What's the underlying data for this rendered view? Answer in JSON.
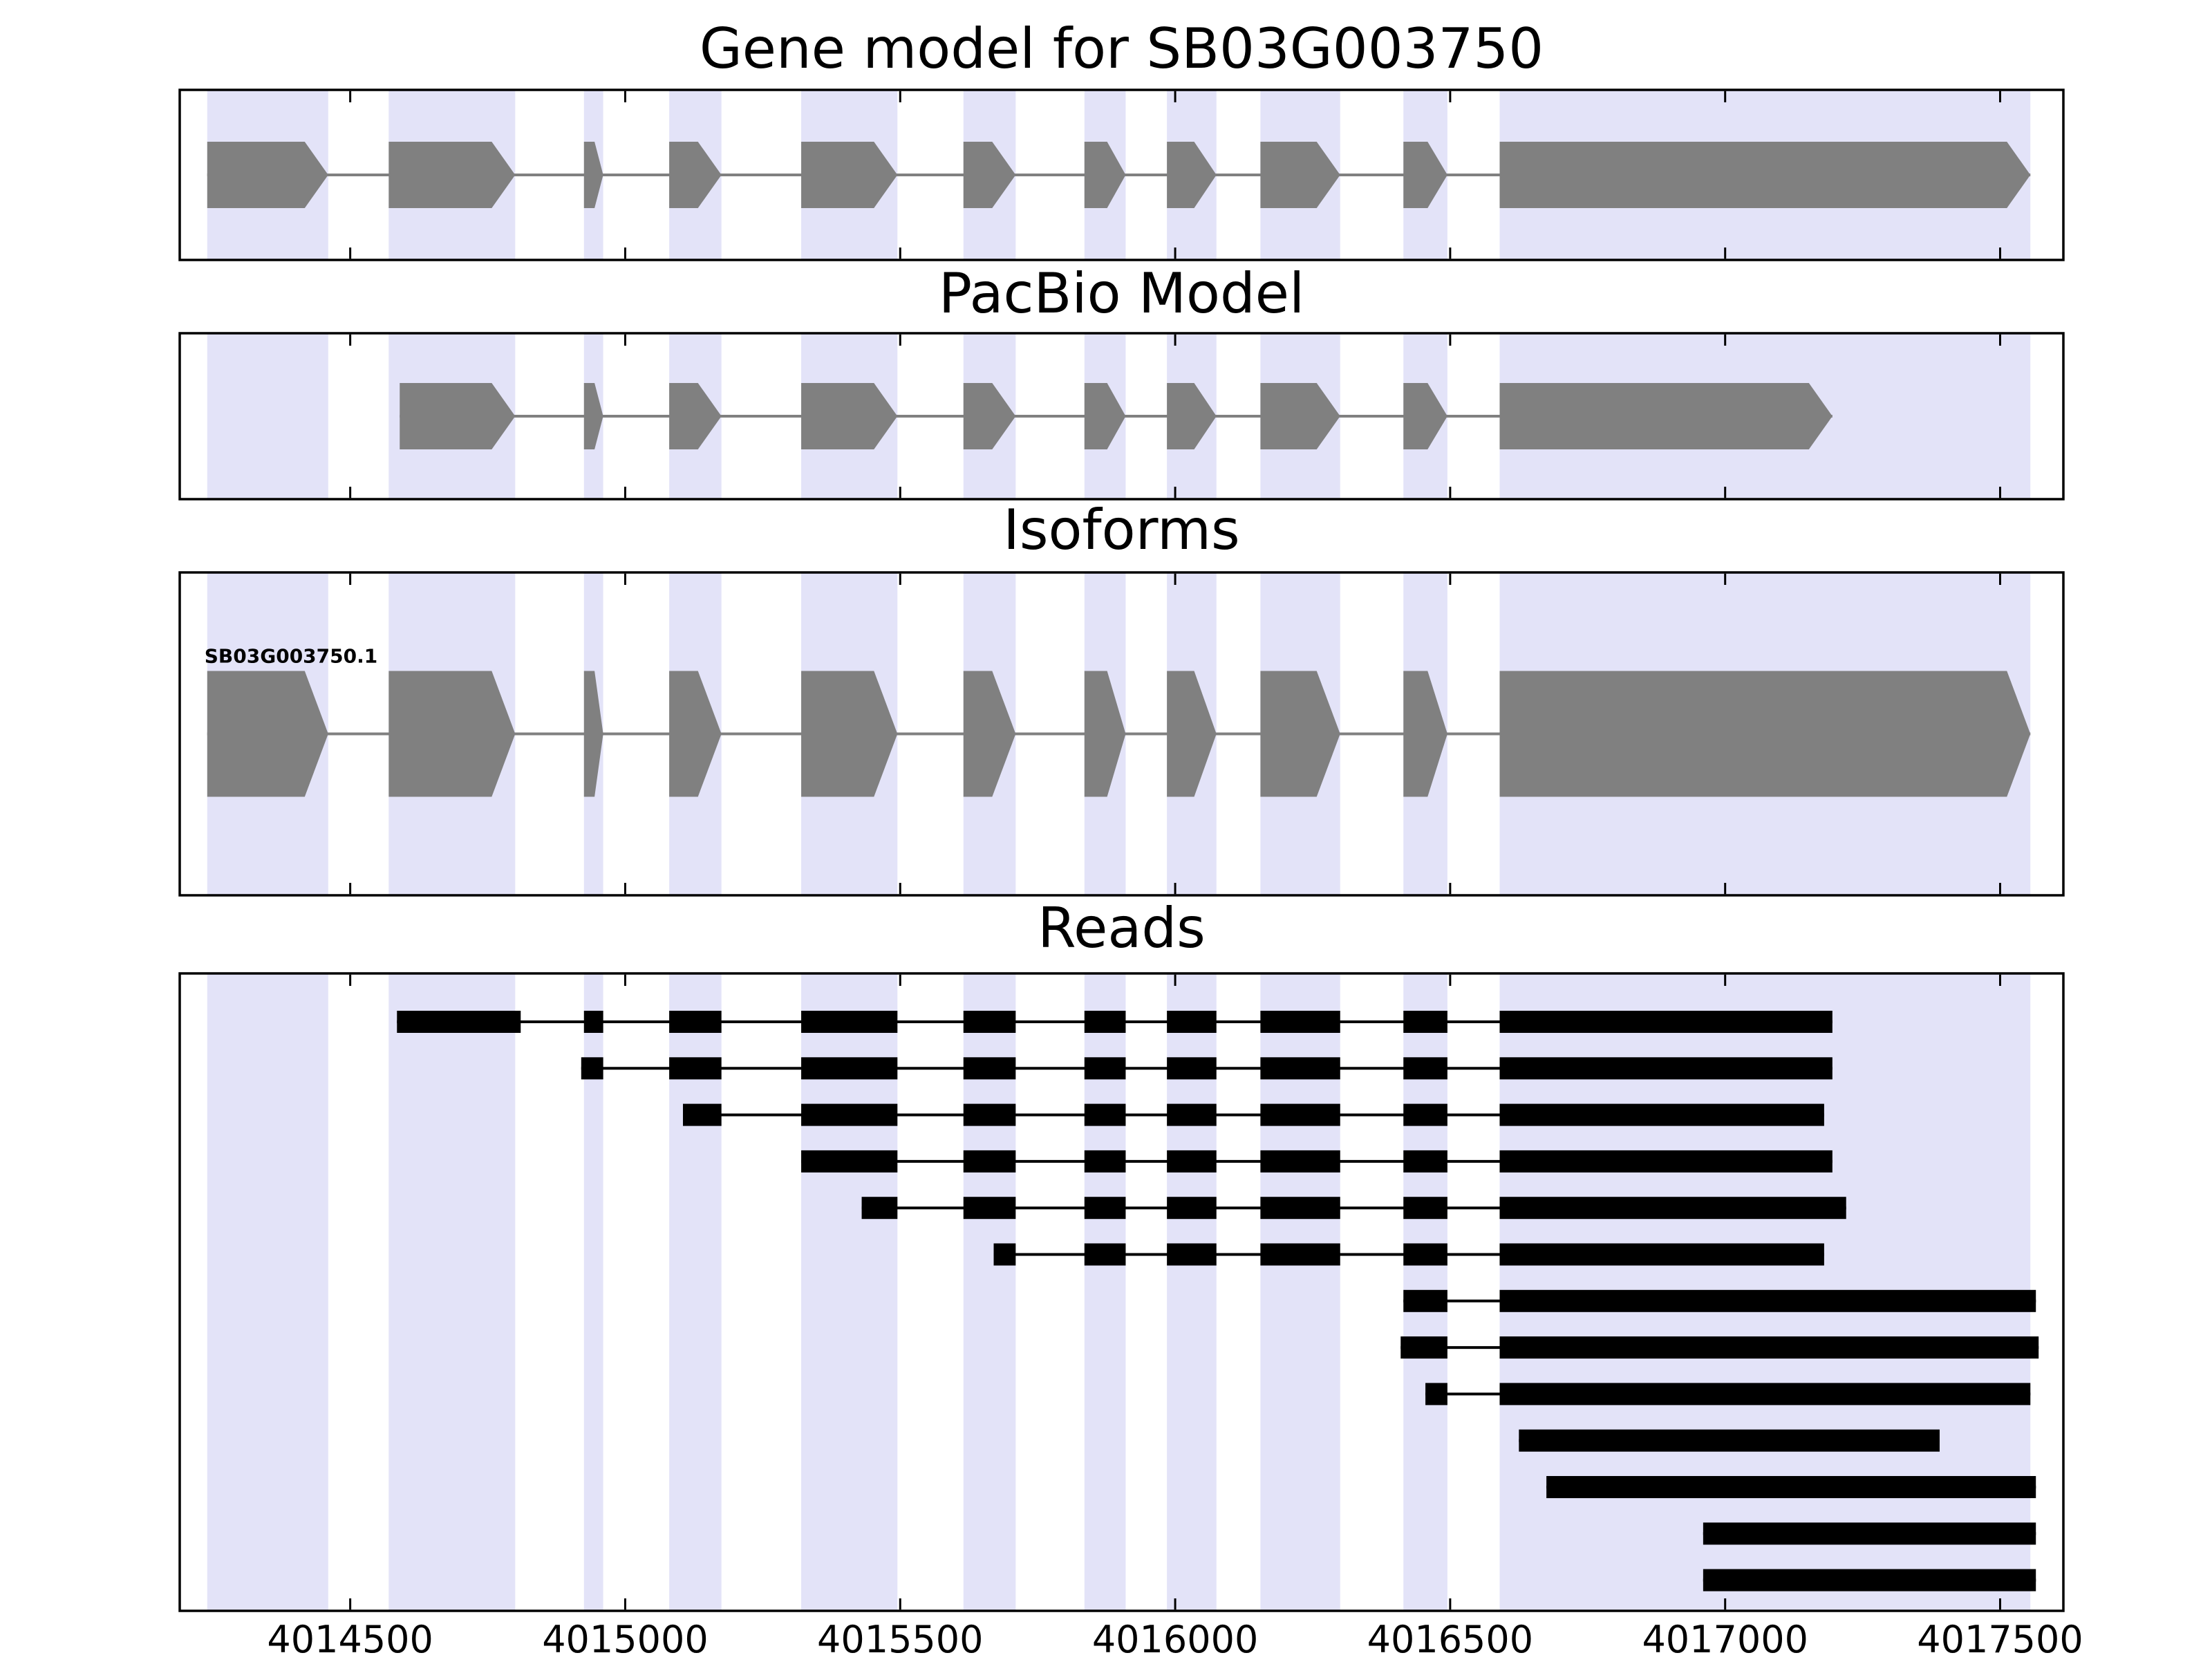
{
  "colors": {
    "background": "#ffffff",
    "exon_fill": "#808080",
    "intron_line": "#808080",
    "highlight_band": "#e3e3f8",
    "read_fill": "#000000",
    "panel_border": "#000000"
  },
  "chart_data": {
    "type": "gene-structure-tracks",
    "x_axis": {
      "min": 4014190,
      "max": 4017615,
      "ticks": [
        4014500,
        4015000,
        4015500,
        4016000,
        4016500,
        4017000,
        4017500
      ],
      "tick_labels": [
        "4014500",
        "4015000",
        "4015500",
        "4016000",
        "4016500",
        "4017000",
        "4017500"
      ]
    },
    "highlight_bands": [
      [
        4014240,
        4014460
      ],
      [
        4014570,
        4014800
      ],
      [
        4014925,
        4014960
      ],
      [
        4015080,
        4015175
      ],
      [
        4015320,
        4015495
      ],
      [
        4015615,
        4015710
      ],
      [
        4015835,
        4015910
      ],
      [
        4015985,
        4016075
      ],
      [
        4016155,
        4016300
      ],
      [
        4016415,
        4016495
      ],
      [
        4016590,
        4017555
      ]
    ],
    "panels": [
      {
        "title": "Gene model for SB03G003750",
        "kind": "model",
        "strand": "+",
        "exons": [
          [
            4014240,
            4014460
          ],
          [
            4014570,
            4014800
          ],
          [
            4014925,
            4014960
          ],
          [
            4015080,
            4015175
          ],
          [
            4015320,
            4015495
          ],
          [
            4015615,
            4015710
          ],
          [
            4015835,
            4015910
          ],
          [
            4015985,
            4016075
          ],
          [
            4016155,
            4016300
          ],
          [
            4016415,
            4016495
          ],
          [
            4016590,
            4017555
          ]
        ]
      },
      {
        "title": "PacBio Model",
        "kind": "model",
        "strand": "+",
        "exons": [
          [
            4014590,
            4014800
          ],
          [
            4014925,
            4014960
          ],
          [
            4015080,
            4015175
          ],
          [
            4015320,
            4015495
          ],
          [
            4015615,
            4015710
          ],
          [
            4015835,
            4015910
          ],
          [
            4015985,
            4016075
          ],
          [
            4016155,
            4016300
          ],
          [
            4016415,
            4016495
          ],
          [
            4016590,
            4017195
          ]
        ]
      },
      {
        "title": "Isoforms",
        "kind": "isoforms",
        "isoforms": [
          {
            "name": "SB03G003750.1",
            "strand": "+",
            "exons": [
              [
                4014240,
                4014460
              ],
              [
                4014570,
                4014800
              ],
              [
                4014925,
                4014960
              ],
              [
                4015080,
                4015175
              ],
              [
                4015320,
                4015495
              ],
              [
                4015615,
                4015710
              ],
              [
                4015835,
                4015910
              ],
              [
                4015985,
                4016075
              ],
              [
                4016155,
                4016300
              ],
              [
                4016415,
                4016495
              ],
              [
                4016590,
                4017555
              ]
            ]
          }
        ]
      },
      {
        "title": "Reads",
        "kind": "reads",
        "reads": [
          [
            [
              4014585,
              4014810
            ],
            [
              4014925,
              4014960
            ],
            [
              4015080,
              4015175
            ],
            [
              4015320,
              4015495
            ],
            [
              4015615,
              4015710
            ],
            [
              4015835,
              4015910
            ],
            [
              4015985,
              4016075
            ],
            [
              4016155,
              4016300
            ],
            [
              4016415,
              4016495
            ],
            [
              4016590,
              4017195
            ]
          ],
          [
            [
              4014920,
              4014960
            ],
            [
              4015080,
              4015175
            ],
            [
              4015320,
              4015495
            ],
            [
              4015615,
              4015710
            ],
            [
              4015835,
              4015910
            ],
            [
              4015985,
              4016075
            ],
            [
              4016155,
              4016300
            ],
            [
              4016415,
              4016495
            ],
            [
              4016590,
              4017195
            ]
          ],
          [
            [
              4015105,
              4015175
            ],
            [
              4015320,
              4015495
            ],
            [
              4015615,
              4015710
            ],
            [
              4015835,
              4015910
            ],
            [
              4015985,
              4016075
            ],
            [
              4016155,
              4016300
            ],
            [
              4016415,
              4016495
            ],
            [
              4016590,
              4017180
            ]
          ],
          [
            [
              4015320,
              4015495
            ],
            [
              4015615,
              4015710
            ],
            [
              4015835,
              4015910
            ],
            [
              4015985,
              4016075
            ],
            [
              4016155,
              4016300
            ],
            [
              4016415,
              4016495
            ],
            [
              4016590,
              4017195
            ]
          ],
          [
            [
              4015430,
              4015495
            ],
            [
              4015615,
              4015710
            ],
            [
              4015835,
              4015910
            ],
            [
              4015985,
              4016075
            ],
            [
              4016155,
              4016300
            ],
            [
              4016415,
              4016495
            ],
            [
              4016590,
              4017220
            ]
          ],
          [
            [
              4015670,
              4015710
            ],
            [
              4015835,
              4015910
            ],
            [
              4015985,
              4016075
            ],
            [
              4016155,
              4016300
            ],
            [
              4016415,
              4016495
            ],
            [
              4016590,
              4017180
            ]
          ],
          [
            [
              4016415,
              4016495
            ],
            [
              4016590,
              4017565
            ]
          ],
          [
            [
              4016410,
              4016495
            ],
            [
              4016590,
              4017570
            ]
          ],
          [
            [
              4016455,
              4016495
            ],
            [
              4016590,
              4017555
            ]
          ],
          [
            [
              4016625,
              4017390
            ]
          ],
          [
            [
              4016675,
              4017565
            ]
          ],
          [
            [
              4016960,
              4017565
            ]
          ],
          [
            [
              4016960,
              4017565
            ]
          ]
        ]
      }
    ]
  }
}
